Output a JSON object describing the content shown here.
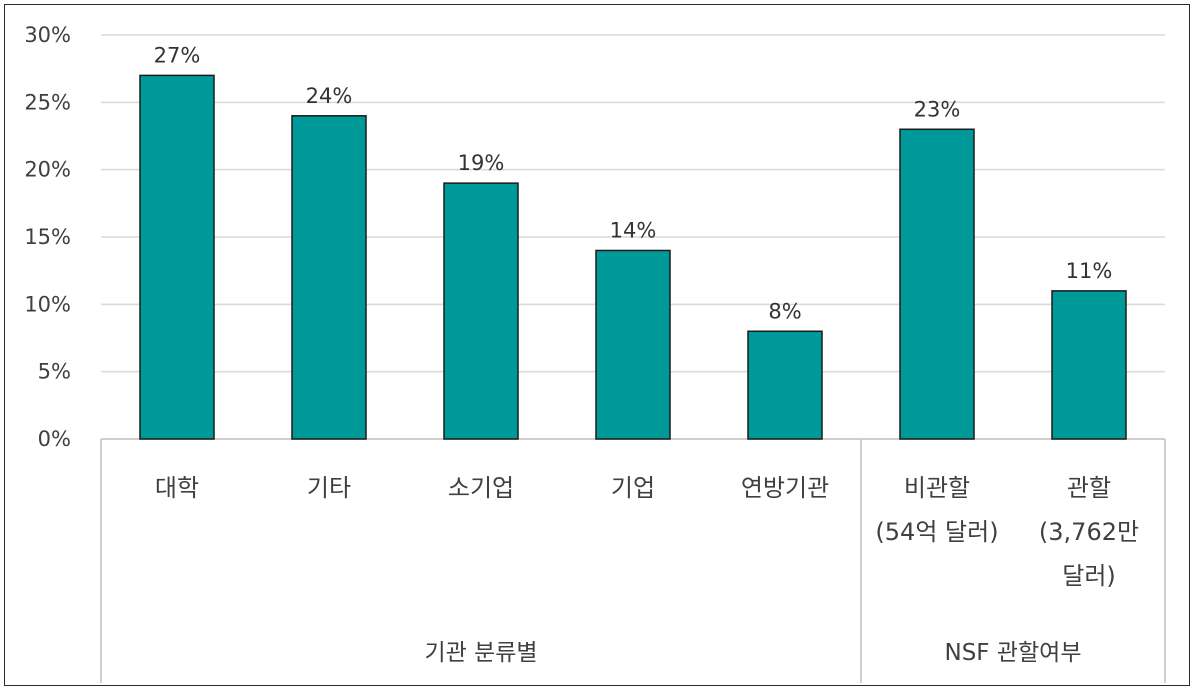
{
  "chart_data": {
    "type": "bar",
    "categories": [
      [
        "대학"
      ],
      [
        "기타"
      ],
      [
        "소기업"
      ],
      [
        "기업"
      ],
      [
        "연방기관"
      ],
      [
        "비관할",
        "(54억 달러)"
      ],
      [
        "관할",
        "(3,762만",
        "달러)"
      ]
    ],
    "values": [
      27,
      24,
      19,
      14,
      8,
      23,
      11
    ],
    "data_labels": [
      "27%",
      "24%",
      "19%",
      "14%",
      "8%",
      "23%",
      "11%"
    ],
    "ylim": [
      0,
      30
    ],
    "yticks": [
      0,
      5,
      10,
      15,
      20,
      25,
      30
    ],
    "ytick_labels": [
      "0%",
      "5%",
      "10%",
      "15%",
      "20%",
      "25%",
      "30%"
    ],
    "groups": [
      {
        "label": "기관 분류별",
        "span": [
          0,
          4
        ]
      },
      {
        "label": "NSF 관할여부",
        "span": [
          5,
          6
        ]
      }
    ],
    "bar_color": "#009999",
    "grid": true,
    "legend": "none"
  }
}
